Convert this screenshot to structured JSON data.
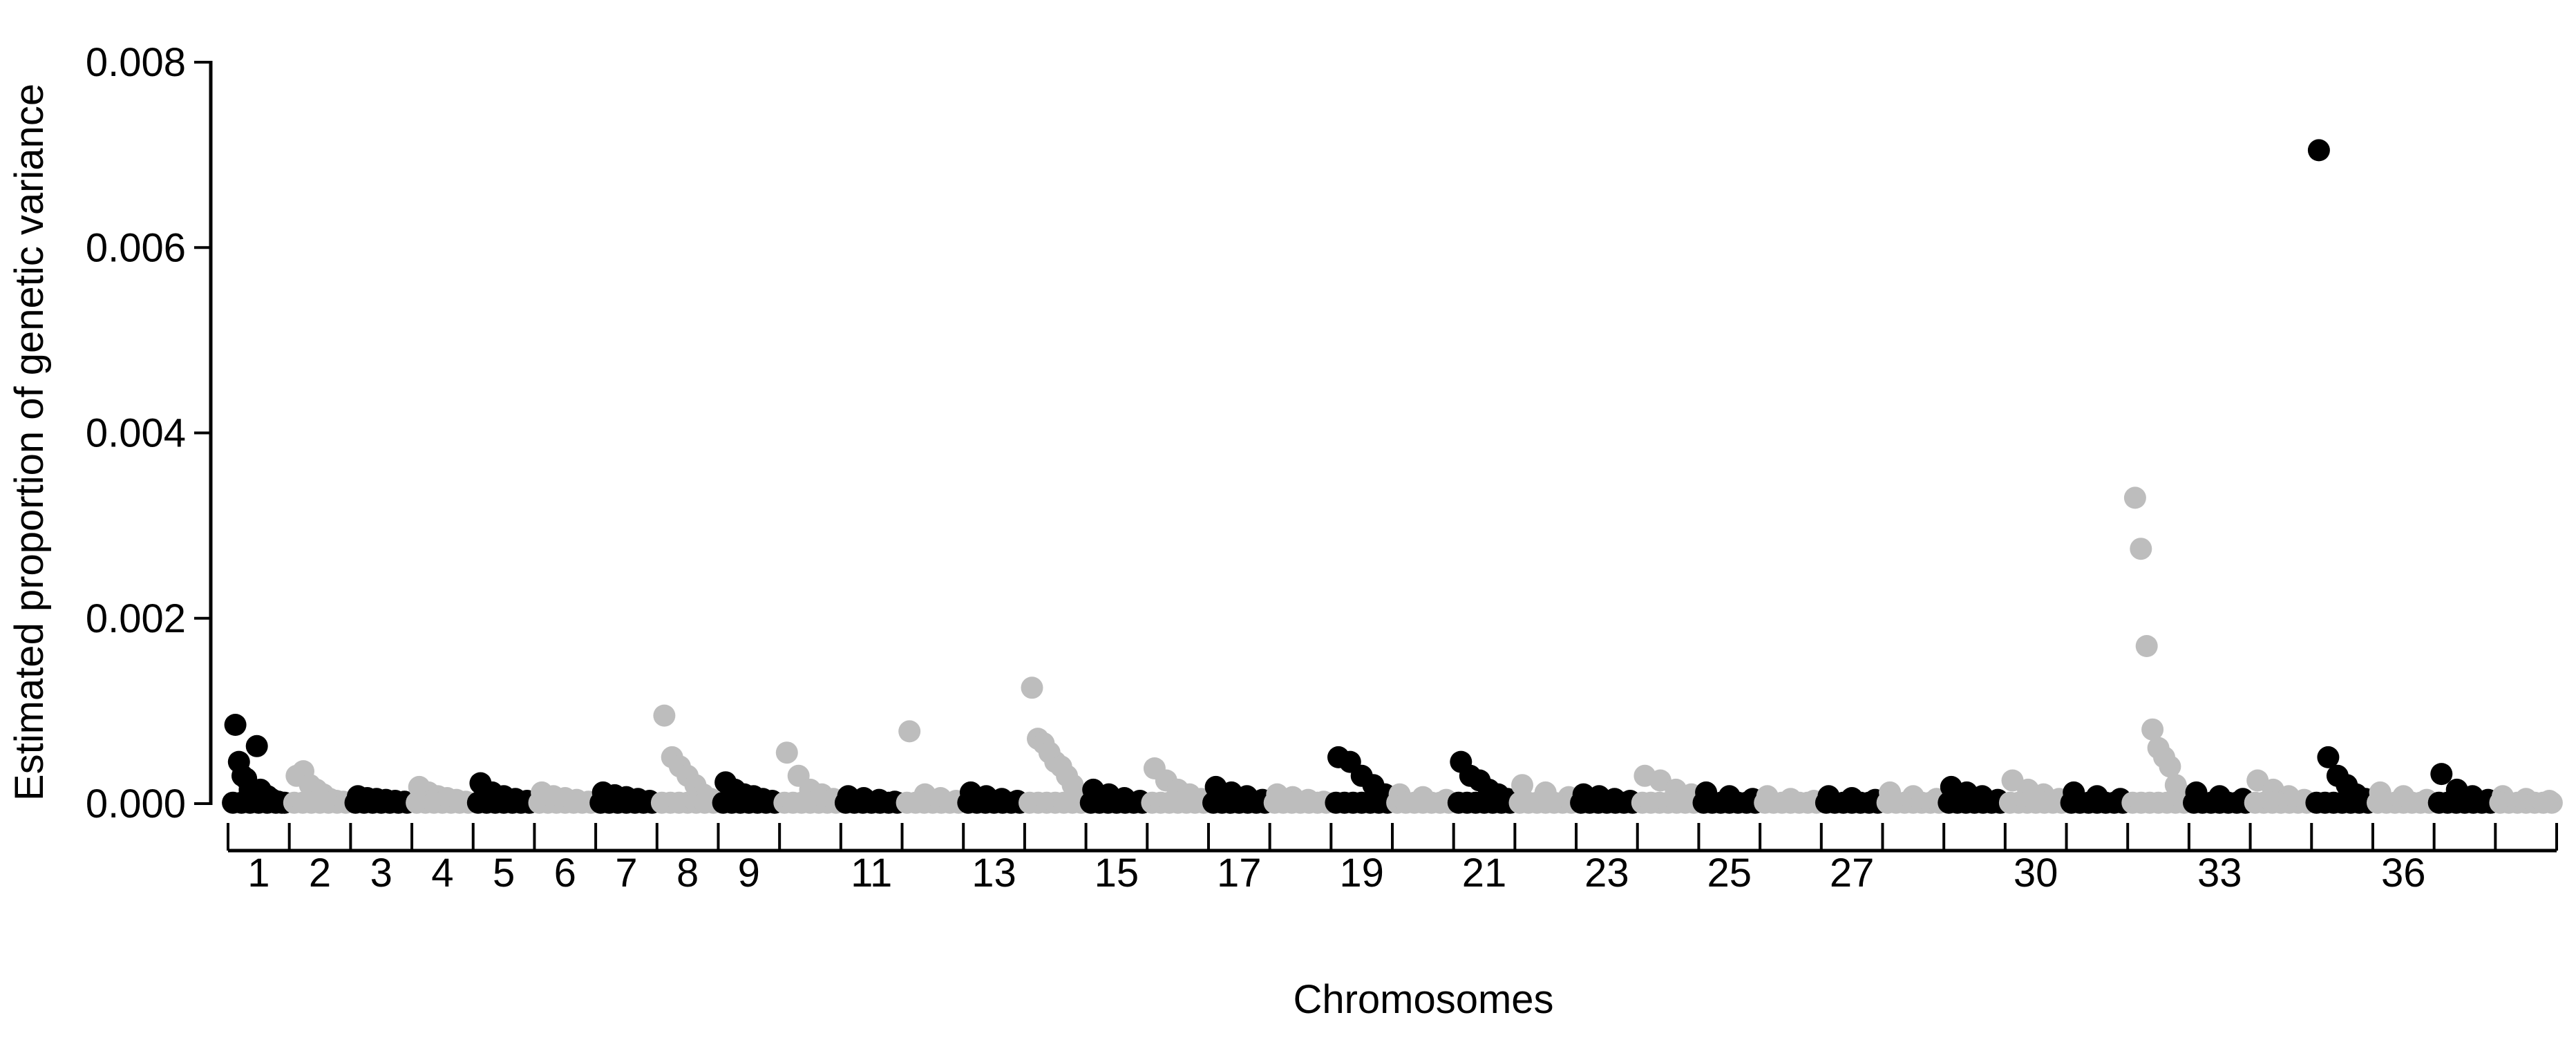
{
  "chart_data": {
    "type": "scatter",
    "title": "",
    "xlabel": "Chromosomes",
    "ylabel": "Estimated proportion of genetic variance",
    "ylim": [
      0,
      0.008
    ],
    "y_ticks": [
      "0.000",
      "0.002",
      "0.004",
      "0.006",
      "0.008"
    ],
    "x_tick_labels": [
      "1",
      "2",
      "3",
      "4",
      "5",
      "6",
      "7",
      "8",
      "9",
      "11",
      "13",
      "15",
      "17",
      "19",
      "21",
      "23",
      "25",
      "27",
      "30",
      "33",
      "36"
    ],
    "chromosome_count": 38,
    "colors": {
      "odd": "#000000",
      "even": "#bdbdbd"
    },
    "grid": false,
    "legend": "none",
    "chromosomes": [
      {
        "chr": 1,
        "values": [
          0.00085,
          0.00045,
          0.0003,
          0.00027,
          0.00015,
          0.0001,
          0.00062,
          0.00015,
          0.0001,
          8e-05,
          5e-05,
          3e-05,
          2e-05,
          1e-05
        ]
      },
      {
        "chr": 2,
        "values": [
          0.0003,
          0.00035,
          0.0002,
          0.00015,
          0.0001,
          5e-05,
          3e-05,
          2e-05
        ]
      },
      {
        "chr": 3,
        "values": [
          8e-05,
          6e-05,
          5e-05,
          4e-05,
          3e-05,
          2e-05
        ]
      },
      {
        "chr": 4,
        "values": [
          0.00018,
          0.00012,
          8e-05,
          6e-05,
          4e-05,
          2e-05
        ]
      },
      {
        "chr": 5,
        "values": [
          0.00022,
          0.00012,
          8e-05,
          5e-05,
          3e-05
        ]
      },
      {
        "chr": 6,
        "values": [
          0.00012,
          8e-05,
          6e-05,
          4e-05,
          2e-05
        ]
      },
      {
        "chr": 7,
        "values": [
          0.00012,
          9e-05,
          7e-05,
          5e-05,
          3e-05
        ]
      },
      {
        "chr": 8,
        "values": [
          0.00095,
          0.0005,
          0.0004,
          0.0003,
          0.0002,
          0.0001,
          5e-05
        ]
      },
      {
        "chr": 9,
        "values": [
          0.00023,
          0.00015,
          0.0001,
          8e-05,
          5e-05,
          3e-05
        ]
      },
      {
        "chr": 10,
        "values": [
          0.00055,
          0.0003,
          0.00015,
          0.0001,
          5e-05
        ]
      },
      {
        "chr": 11,
        "values": [
          8e-05,
          6e-05,
          4e-05,
          2e-05
        ]
      },
      {
        "chr": 12,
        "values": [
          0.00078,
          0.0001,
          6e-05,
          3e-05
        ]
      },
      {
        "chr": 13,
        "values": [
          0.00012,
          8e-05,
          5e-05,
          3e-05
        ]
      },
      {
        "chr": 14,
        "values": [
          0.00125,
          0.0007,
          0.00065,
          0.00055,
          0.00045,
          0.0004,
          0.0003,
          0.0002,
          0.0001
        ]
      },
      {
        "chr": 15,
        "values": [
          0.00015,
          0.0001,
          6e-05,
          3e-05
        ]
      },
      {
        "chr": 16,
        "values": [
          0.00038,
          0.00025,
          0.00015,
          0.0001,
          5e-05
        ]
      },
      {
        "chr": 17,
        "values": [
          0.00018,
          0.00012,
          8e-05,
          4e-05
        ]
      },
      {
        "chr": 18,
        "values": [
          0.0001,
          7e-05,
          4e-05,
          2e-05
        ]
      },
      {
        "chr": 19,
        "values": [
          0.0005,
          0.00045,
          0.0003,
          0.0002,
          0.0001
        ]
      },
      {
        "chr": 20,
        "values": [
          0.0001,
          7e-05,
          4e-05
        ]
      },
      {
        "chr": 21,
        "values": [
          0.00045,
          0.0003,
          0.00025,
          0.00015,
          0.0001,
          5e-05
        ]
      },
      {
        "chr": 22,
        "values": [
          0.0002,
          0.00012,
          7e-05
        ]
      },
      {
        "chr": 23,
        "values": [
          0.0001,
          8e-05,
          5e-05,
          3e-05
        ]
      },
      {
        "chr": 24,
        "values": [
          0.0003,
          0.00025,
          0.00015,
          0.0001
        ]
      },
      {
        "chr": 25,
        "values": [
          0.00012,
          8e-05,
          5e-05
        ]
      },
      {
        "chr": 26,
        "values": [
          8e-05,
          5e-05,
          3e-05
        ]
      },
      {
        "chr": 27,
        "values": [
          8e-05,
          6e-05,
          4e-05
        ]
      },
      {
        "chr": 28,
        "values": [
          0.00012,
          8e-05,
          5e-05
        ]
      },
      {
        "chr": 29,
        "values": [
          0.00018,
          0.00012,
          8e-05,
          4e-05
        ]
      },
      {
        "chr": 30,
        "values": [
          0.00025,
          0.00015,
          0.0001,
          5e-05
        ]
      },
      {
        "chr": 31,
        "values": [
          0.00012,
          8e-05,
          5e-05
        ]
      },
      {
        "chr": 32,
        "values": [
          0.0033,
          0.00275,
          0.0017,
          0.0008,
          0.0006,
          0.0005,
          0.0004,
          0.0002,
          0.0001
        ]
      },
      {
        "chr": 33,
        "values": [
          0.00012,
          8e-05,
          5e-05
        ]
      },
      {
        "chr": 34,
        "values": [
          0.00025,
          0.00015,
          8e-05,
          4e-05
        ]
      },
      {
        "chr": 35,
        "values": [
          0.00705,
          0.0005,
          0.0003,
          0.0002,
          0.0001,
          5e-05
        ]
      },
      {
        "chr": 36,
        "values": [
          0.00012,
          8e-05,
          4e-05
        ]
      },
      {
        "chr": 37,
        "values": [
          0.00032,
          0.00015,
          8e-05,
          4e-05
        ]
      },
      {
        "chr": 38,
        "values": [
          8e-05,
          5e-05,
          3e-05
        ]
      }
    ]
  }
}
